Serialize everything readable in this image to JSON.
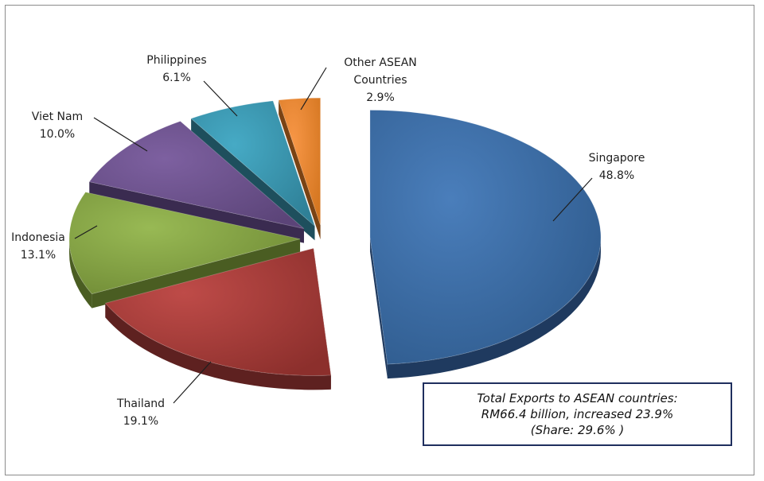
{
  "chart_data": {
    "type": "pie",
    "style": "3d-exploded",
    "title": "",
    "slices": [
      {
        "name": "Singapore",
        "value": 48.8,
        "label": "48.8%",
        "color": "#4a7ebb",
        "side": "#1f3a5f",
        "gradEnd": "#2e5a8c"
      },
      {
        "name": "Thailand",
        "value": 19.1,
        "label": "19.1%",
        "color": "#be4b48",
        "side": "#5e2120",
        "gradEnd": "#8c2f2c"
      },
      {
        "name": "Indonesia",
        "value": 13.1,
        "label": "13.1%",
        "color": "#98b954",
        "side": "#4a5d22",
        "gradEnd": "#6f8a35"
      },
      {
        "name": "Viet Nam",
        "value": 10.0,
        "label": "10.0%",
        "color": "#7d60a0",
        "side": "#3a2b50",
        "gradEnd": "#5b4478"
      },
      {
        "name": "Philippines",
        "value": 6.1,
        "label": "6.1%",
        "color": "#46aac5",
        "side": "#1e4f5d",
        "gradEnd": "#2f8097"
      },
      {
        "name": "Other ASEAN Countries",
        "value": 2.9,
        "label": "2.9%",
        "color": "#f79646",
        "side": "#7a4314",
        "gradEnd": "#d47620"
      }
    ],
    "legend": "none",
    "note": {
      "lines": [
        "Total Exports to ASEAN countries:",
        "RM66.4 billion, increased 23.9%",
        "(Share: 29.6% )"
      ]
    }
  }
}
